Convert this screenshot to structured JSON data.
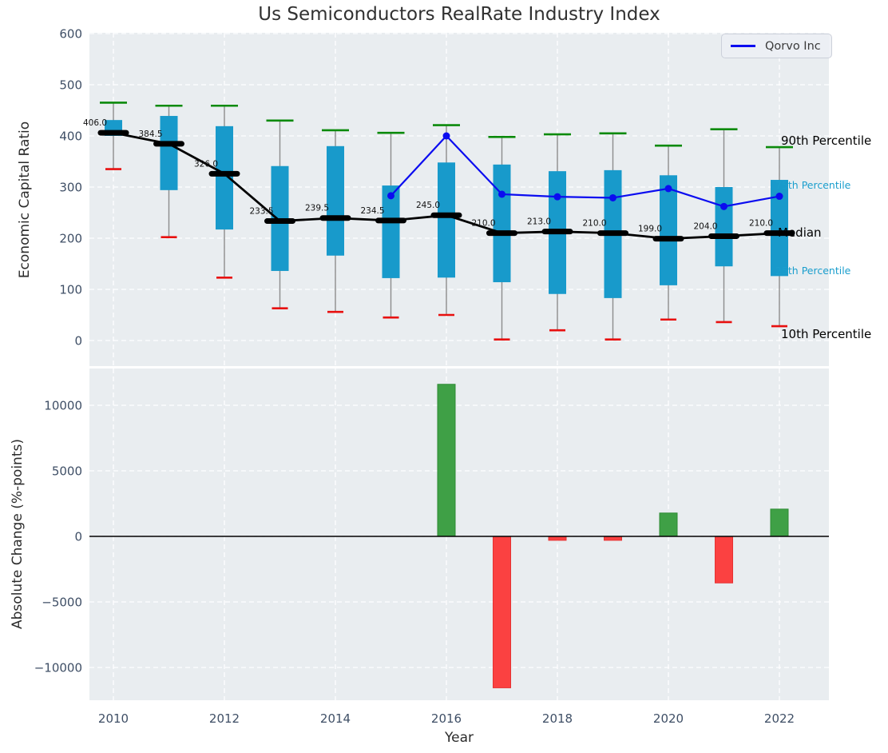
{
  "title": "Us Semiconductors RealRate Industry Index",
  "legend": {
    "label": "Qorvo Inc"
  },
  "axes": {
    "top_ylabel": "Economic Capital Ratio",
    "bottom_ylabel": "Absolute Change (%-points)",
    "xlabel": "Year",
    "top_yticks": [
      0,
      100,
      200,
      300,
      400,
      500,
      600
    ],
    "bottom_yticks": [
      -10000,
      -5000,
      0,
      5000,
      10000
    ],
    "xticks": [
      2010,
      2012,
      2014,
      2016,
      2018,
      2020,
      2022
    ]
  },
  "percentile_labels": [
    {
      "id": "p90",
      "text": "90th Percentile",
      "color": "#000000"
    },
    {
      "id": "p75",
      "text": "75th Percentile",
      "color": "#1a9ecd"
    },
    {
      "id": "median",
      "text": "Median",
      "color": "#000000"
    },
    {
      "id": "p25",
      "text": "25th Percentile",
      "color": "#1a9ecd"
    },
    {
      "id": "p10",
      "text": "10th Percentile",
      "color": "#000000"
    }
  ],
  "colors": {
    "plot_bg": "#e9edf0",
    "grid": "#ffffff",
    "tick": "#3f4f66",
    "box": "#189acb",
    "whisker": "#8c8c8c",
    "p90_cap": "#0b8a0b",
    "p10_cap": "#e8100f",
    "median": "#000000",
    "qorvo": "#0b0cf0",
    "bar_pos": "#3fa046",
    "bar_pos_edge": "#2e8b34",
    "bar_neg": "#fb4141",
    "bar_neg_edge": "#e63232",
    "annotation_cyan": "#1a9ecd"
  },
  "chart_data": [
    {
      "type": "line",
      "subtype": "percentile-box-whisker",
      "title": "Us Semiconductors RealRate Industry Index",
      "xlabel": "Year",
      "ylabel": "Economic Capital Ratio",
      "x": [
        2010,
        2011,
        2012,
        2013,
        2014,
        2015,
        2016,
        2017,
        2018,
        2019,
        2020,
        2021,
        2022
      ],
      "ylim": [
        -50,
        600
      ],
      "grid": true,
      "legend_position": "upper right",
      "series": [
        {
          "name": "90th Percentile",
          "values": [
            465,
            459,
            459,
            430,
            411,
            406,
            421,
            398,
            403,
            405,
            381,
            413,
            378
          ]
        },
        {
          "name": "75th Percentile",
          "values": [
            431,
            439,
            419,
            341,
            380,
            303,
            348,
            344,
            331,
            333,
            323,
            300,
            314
          ]
        },
        {
          "name": "Median",
          "values": [
            406.0,
            384.5,
            326.0,
            233.5,
            239.5,
            234.5,
            245.0,
            210.0,
            213.0,
            210.0,
            199.0,
            204.0,
            210.0
          ]
        },
        {
          "name": "25th Percentile",
          "values": [
            400,
            294,
            217,
            136,
            166,
            122,
            123,
            114,
            91,
            83,
            108,
            145,
            126
          ]
        },
        {
          "name": "10th Percentile",
          "values": [
            335,
            202,
            123,
            63,
            56,
            45,
            50,
            2,
            20,
            2,
            41,
            36,
            28
          ]
        },
        {
          "name": "Qorvo Inc",
          "x": [
            2015,
            2016,
            2017,
            2018,
            2019,
            2020,
            2021,
            2022
          ],
          "values": [
            283,
            400,
            286,
            281,
            279,
            297,
            262,
            282
          ]
        }
      ],
      "median_labels": [
        "406.0",
        "384.5",
        "326.0",
        "233.5",
        "239.5",
        "234.5",
        "245.0",
        "210.0",
        "213.0",
        "210.0",
        "199.0",
        "204.0",
        "210.0"
      ]
    },
    {
      "type": "bar",
      "xlabel": "Year",
      "ylabel": "Absolute Change (%-points)",
      "x": [
        2010,
        2011,
        2012,
        2013,
        2014,
        2015,
        2016,
        2017,
        2018,
        2019,
        2020,
        2021,
        2022
      ],
      "values": [
        0,
        0,
        0,
        0,
        0,
        0,
        11600,
        -11550,
        -300,
        -300,
        1780,
        -3550,
        2080
      ],
      "ylim": [
        -12500,
        12900
      ],
      "grid": true
    }
  ]
}
